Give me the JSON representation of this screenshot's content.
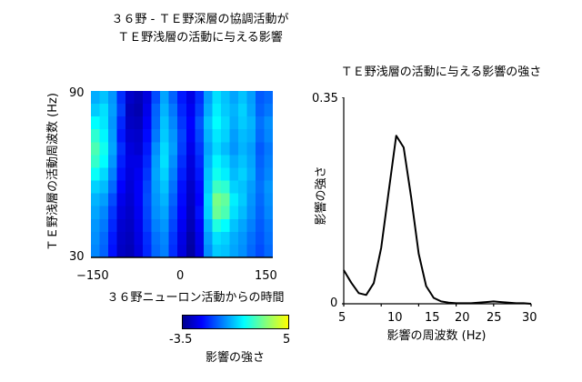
{
  "left_panel": {
    "title_line1": "３６野 - ＴＥ野深層の協調活動が",
    "title_line2": "ＴＥ野浅層の活動に与える影響",
    "ylabel": "ＴＥ野浅層の活動周波数 (Hz)",
    "xlabel": "３６野ニューロン活動からの時間",
    "colorbar_label": "影響の強さ"
  },
  "right_panel": {
    "title": "ＴＥ野浅層の活動に与える影響の強さ",
    "ylabel": "影響の強さ",
    "xlabel": "影響の周波数 (Hz)"
  },
  "chart_data": [
    {
      "type": "heatmap",
      "title": "３６野 - ＴＥ野深層の協調活動が ＴＥ野浅層の活動に与える影響",
      "xlabel": "３６野ニューロン活動からの時間",
      "ylabel": "ＴＥ野浅層の活動周波数 (Hz)",
      "xlim": [
        -150,
        150
      ],
      "ylim": [
        30,
        90
      ],
      "xticks": [
        -150,
        0,
        150
      ],
      "xtick_labels": [
        "−150",
        "0",
        "150"
      ],
      "yticks": [
        30,
        90
      ],
      "ytick_labels": [
        "30",
        "90"
      ],
      "colorbar": {
        "label": "影響の強さ",
        "range": [
          -3.5,
          5
        ],
        "tick_labels": [
          "-3.5",
          "5"
        ],
        "colors": [
          "#00008f",
          "#0000ff",
          "#0080ff",
          "#00ffff",
          "#80ff80",
          "#ffff00"
        ]
      },
      "x": [
        -150,
        -135,
        -120,
        -105,
        -90,
        -75,
        -60,
        -45,
        -30,
        -15,
        0,
        15,
        30,
        45,
        60,
        75,
        90,
        105,
        120,
        135,
        150
      ],
      "y": [
        90,
        85,
        80,
        75,
        70,
        65,
        60,
        55,
        50,
        45,
        40,
        35,
        30
      ],
      "z": [
        [
          0.5,
          0.8,
          0.2,
          -1.2,
          -2.6,
          -2.9,
          -2.3,
          -0.8,
          0.4,
          -0.5,
          -1.5,
          -2.2,
          -1.2,
          0.3,
          1.2,
          0.8,
          0.4,
          0.8,
          0.3,
          -0.6,
          -0.4
        ],
        [
          0.9,
          1.2,
          0.3,
          -1.0,
          -2.8,
          -3.0,
          -2.1,
          -0.5,
          0.6,
          -0.2,
          -1.3,
          -2.0,
          -1.0,
          0.5,
          1.4,
          0.9,
          0.6,
          1.0,
          0.4,
          -0.5,
          -0.2
        ],
        [
          1.6,
          1.3,
          0.2,
          -1.3,
          -2.7,
          -2.8,
          -1.9,
          -0.4,
          0.8,
          0.0,
          -1.1,
          -1.8,
          -0.7,
          0.8,
          1.6,
          1.1,
          0.5,
          0.9,
          0.6,
          -0.3,
          0.1
        ],
        [
          2.2,
          1.5,
          0.3,
          -1.5,
          -2.5,
          -2.6,
          -1.7,
          -0.2,
          0.9,
          0.2,
          -0.9,
          -1.9,
          -0.9,
          0.6,
          1.3,
          1.0,
          0.3,
          0.7,
          0.5,
          -0.4,
          0.0
        ],
        [
          2.6,
          1.8,
          0.4,
          -1.2,
          -2.3,
          -2.5,
          -1.5,
          0.1,
          1.1,
          0.3,
          -1.0,
          -2.1,
          -1.1,
          0.4,
          1.1,
          0.7,
          0.2,
          0.6,
          0.3,
          -0.6,
          -0.2
        ],
        [
          2.3,
          1.6,
          0.2,
          -1.4,
          -2.2,
          -2.2,
          -1.3,
          0.3,
          1.2,
          0.1,
          -1.2,
          -2.3,
          -1.3,
          0.6,
          1.5,
          1.1,
          0.5,
          0.8,
          0.4,
          -0.5,
          -0.1
        ],
        [
          1.7,
          1.1,
          -0.1,
          -1.6,
          -2.3,
          -2.0,
          -1.1,
          0.4,
          1.0,
          -0.1,
          -1.4,
          -2.4,
          -1.5,
          0.8,
          1.8,
          1.4,
          0.7,
          1.0,
          0.5,
          -0.4,
          0.0
        ],
        [
          1.0,
          0.7,
          -0.4,
          -1.8,
          -2.4,
          -1.9,
          -0.9,
          0.3,
          0.8,
          -0.3,
          -1.6,
          -2.6,
          -1.7,
          0.9,
          2.4,
          2.2,
          1.0,
          0.8,
          0.3,
          -0.3,
          0.2
        ],
        [
          0.6,
          0.3,
          -0.8,
          -2.1,
          -2.5,
          -1.9,
          -0.8,
          0.2,
          0.6,
          -0.5,
          -1.7,
          -2.7,
          -1.8,
          1.1,
          3.2,
          2.9,
          1.4,
          0.9,
          0.2,
          -0.4,
          0.1
        ],
        [
          0.4,
          0.0,
          -1.1,
          -2.3,
          -2.6,
          -2.0,
          -0.9,
          0.1,
          0.4,
          -0.7,
          -1.8,
          -2.8,
          -1.6,
          1.0,
          3.0,
          2.6,
          1.2,
          0.7,
          0.1,
          -0.5,
          0.0
        ],
        [
          0.2,
          -0.2,
          -1.3,
          -2.5,
          -2.7,
          -2.1,
          -1.0,
          -0.1,
          0.2,
          -0.9,
          -2.0,
          -2.9,
          -1.9,
          0.6,
          2.0,
          1.6,
          0.8,
          0.4,
          -0.1,
          -0.6,
          -0.2
        ],
        [
          0.1,
          -0.4,
          -1.5,
          -2.6,
          -2.8,
          -2.2,
          -1.2,
          -0.3,
          0.0,
          -1.1,
          -2.2,
          -3.1,
          -2.1,
          0.3,
          1.2,
          1.0,
          0.5,
          0.2,
          -0.3,
          -0.7,
          -0.3
        ],
        [
          0.0,
          -0.5,
          -1.6,
          -2.7,
          -2.9,
          -2.3,
          -1.3,
          -0.4,
          -0.1,
          -1.2,
          -2.3,
          -3.2,
          -2.2,
          0.1,
          0.9,
          0.8,
          0.4,
          0.1,
          -0.4,
          -0.8,
          -0.4
        ]
      ]
    },
    {
      "type": "line",
      "title": "ＴＥ野浅層の活動に与える影響の強さ",
      "xlabel": "影響の周波数 (Hz)",
      "ylabel": "影響の強さ",
      "xlim": [
        5,
        30
      ],
      "ylim": [
        0,
        0.35
      ],
      "xticks": [
        5,
        10,
        15,
        20,
        25,
        30
      ],
      "yticks": [
        0,
        0.35
      ],
      "ytick_labels": [
        "0",
        "0.35"
      ],
      "x": [
        5,
        6,
        7,
        8,
        9,
        10,
        11,
        12,
        13,
        14,
        15,
        16,
        17,
        18,
        19,
        20,
        21,
        22,
        23,
        24,
        25,
        26,
        27,
        28,
        29,
        30
      ],
      "y": [
        0.057,
        0.036,
        0.018,
        0.015,
        0.035,
        0.095,
        0.19,
        0.285,
        0.265,
        0.18,
        0.085,
        0.03,
        0.01,
        0.004,
        0.002,
        0.001,
        0.001,
        0.001,
        0.002,
        0.003,
        0.004,
        0.003,
        0.002,
        0.001,
        0.001,
        0.0
      ]
    }
  ]
}
